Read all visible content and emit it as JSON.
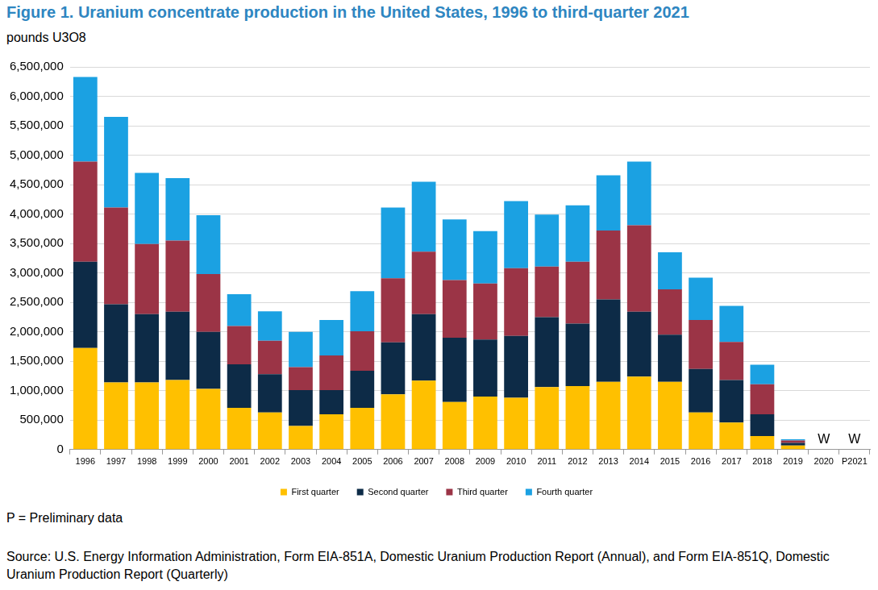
{
  "chart_data": {
    "type": "bar",
    "title": "Figure 1. Uranium concentrate production in the United States, 1996 to third-quarter 2021",
    "subtitle": "pounds U3O8",
    "categories": [
      "1996",
      "1997",
      "1998",
      "1999",
      "2000",
      "2001",
      "2002",
      "2003",
      "2004",
      "2005",
      "2006",
      "2007",
      "2008",
      "2009",
      "2010",
      "2011",
      "2012",
      "2013",
      "2014",
      "2015",
      "2016",
      "2017",
      "2018",
      "2019",
      "2020",
      "P2021"
    ],
    "series": [
      {
        "name": "First quarter",
        "color": "#FFC000",
        "values": [
          1725000,
          1140000,
          1140000,
          1180000,
          1030000,
          710000,
          630000,
          400000,
          600000,
          710000,
          940000,
          1170000,
          810000,
          900000,
          880000,
          1060000,
          1080000,
          1150000,
          1240000,
          1150000,
          630000,
          460000,
          230000,
          70000,
          null,
          null
        ]
      },
      {
        "name": "Second quarter",
        "color": "#0D2B47",
        "values": [
          1465000,
          1330000,
          1160000,
          1160000,
          970000,
          740000,
          650000,
          610000,
          410000,
          630000,
          880000,
          1130000,
          1090000,
          970000,
          1050000,
          1190000,
          1060000,
          1400000,
          1100000,
          800000,
          740000,
          720000,
          370000,
          43000,
          null,
          null
        ]
      },
      {
        "name": "Third quarter",
        "color": "#9B3446",
        "values": [
          1700000,
          1640000,
          1190000,
          1210000,
          980000,
          650000,
          570000,
          390000,
          590000,
          670000,
          1090000,
          1060000,
          980000,
          950000,
          1150000,
          860000,
          1050000,
          1170000,
          1470000,
          770000,
          830000,
          650000,
          510000,
          40000,
          null,
          null
        ]
      },
      {
        "name": "Fourth quarter",
        "color": "#1BA1E2",
        "values": [
          1440000,
          1540000,
          1210000,
          1060000,
          1000000,
          540000,
          500000,
          600000,
          600000,
          680000,
          1200000,
          1190000,
          1030000,
          890000,
          1140000,
          880000,
          960000,
          940000,
          1080000,
          630000,
          720000,
          610000,
          330000,
          21000,
          null,
          null
        ]
      }
    ],
    "ylim": [
      0,
      6500000
    ],
    "yticks": [
      0,
      {
        "value": 500000,
        "label": "500,000"
      },
      {
        "value": 1000000,
        "label": "1,000,000"
      },
      {
        "value": 1500000,
        "label": "1,500,000"
      },
      {
        "value": 2000000,
        "label": "2,000,000"
      },
      {
        "value": 2500000,
        "label": "2,500,000"
      },
      {
        "value": 3000000,
        "label": "3,000,000"
      },
      {
        "value": 3500000,
        "label": "3,500,000"
      },
      {
        "value": 4000000,
        "label": "4,000,000"
      },
      {
        "value": 4500000,
        "label": "4,500,000"
      },
      {
        "value": 5000000,
        "label": "5,000,000"
      },
      {
        "value": 5500000,
        "label": "5,500,000"
      },
      {
        "value": 6000000,
        "label": "6,000,000"
      },
      {
        "value": 6500000,
        "label": "6,500,000"
      }
    ],
    "grid": true,
    "stacked": true,
    "legend": "bottom",
    "annotations": [
      {
        "category": "2020",
        "text": "W"
      },
      {
        "category": "P2021",
        "text": "W"
      }
    ],
    "notes": [
      "P = Preliminary data",
      "Source: U.S. Energy Information Administration, Form EIA-851A, Domestic Uranium Production Report (Annual), and Form EIA-851Q, Domestic Uranium Production Report (Quarterly)"
    ]
  }
}
